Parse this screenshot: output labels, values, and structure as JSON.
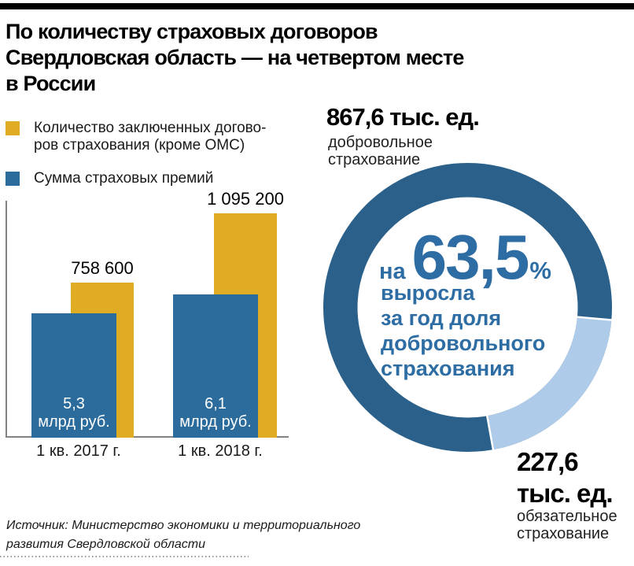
{
  "header": {
    "title_lines": [
      "По количеству страховых договоров",
      "Свердловская область — на четвертом месте",
      "в России"
    ]
  },
  "legend": {
    "items": [
      {
        "lines": [
          "Количество заключенных догово-",
          "ров страхования (кроме ОМС)"
        ],
        "swatch_color": "#DFAC24"
      },
      {
        "lines": [
          "Сумма страховых премий"
        ],
        "swatch_color": "#2B6C9C"
      }
    ]
  },
  "chart_data": [
    {
      "type": "bar",
      "categories": [
        "1 кв. 2017 г.",
        "1 кв. 2018 г."
      ],
      "series": [
        {
          "name": "Количество заключенных договоров страхования (кроме ОМС)",
          "unit": "ед.",
          "values": [
            758600,
            1095200
          ],
          "display_labels": [
            "758 600",
            "1 095 200"
          ],
          "color": "#DFAC24"
        },
        {
          "name": "Сумма страховых премий",
          "unit": "млрд руб.",
          "values": [
            5.3,
            6.1
          ],
          "display_labels": [
            [
              "5,3",
              "млрд руб."
            ],
            [
              "6,1",
              "млрд руб."
            ]
          ],
          "color": "#2B6C9C"
        }
      ],
      "grid": false,
      "y_axis_labels": false,
      "legend_position": "top-left"
    },
    {
      "type": "donut",
      "slices": [
        {
          "label": "добровольное страхование",
          "value": 867.6,
          "display": "867,6 тыс. ед.",
          "color": "#2A6089"
        },
        {
          "label": "обязательное страхование",
          "value": 227.6,
          "display": "227,6 тыс. ед.",
          "color": "#AECBE9"
        }
      ],
      "light_slice_start_angle_deg": 95,
      "center_annotation": {
        "prefix": "на",
        "value": "63,5",
        "suffix": "%",
        "lines": [
          "выросла",
          "за год доля",
          "добровольного",
          "страхования"
        ]
      }
    }
  ],
  "donut_callouts": {
    "top": {
      "value": "867,6 тыс. ед.",
      "label_lines": [
        "добровольное",
        "страхование"
      ]
    },
    "bottom": {
      "value_lines": [
        "227,6",
        "тыс. ед."
      ],
      "label_lines": [
        "обязательное",
        "страхование"
      ]
    }
  },
  "source": {
    "lines": [
      "Источник: Министерство экономики и территориального",
      "развития Свердловской области"
    ]
  },
  "colors": {
    "accent_yellow": "#DFAC24",
    "bar_blue": "#2B6C9C",
    "donut_dark_blue": "#2A6089",
    "donut_light_blue": "#AECBE9",
    "center_text_blue": "#2E6DA4",
    "axis_gray": "#808285",
    "top_bar_black": "#000000"
  }
}
